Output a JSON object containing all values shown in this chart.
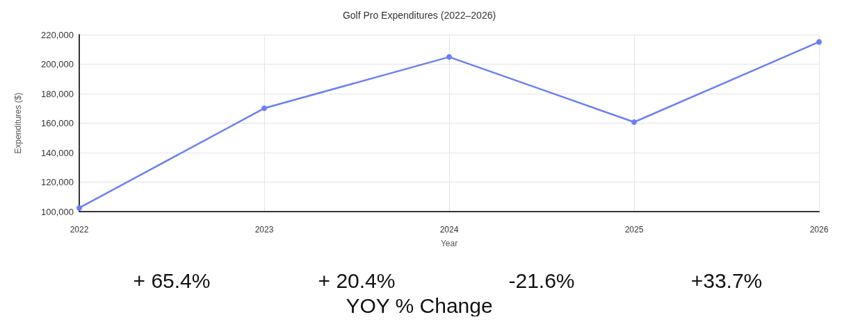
{
  "chart_data": {
    "type": "line",
    "title": "Golf Pro Expenditures (2022–2026)",
    "xlabel": "Year",
    "ylabel": "Expenditures ($)",
    "categories": [
      "2022",
      "2023",
      "2024",
      "2025",
      "2026"
    ],
    "series": [
      {
        "color": "#6b7ff5",
        "values": [
          102500,
          170100,
          204900,
          160700,
          215100
        ]
      }
    ],
    "ylim": [
      100000,
      220000
    ],
    "yticks": [
      {
        "value": 100000,
        "label": "100,000"
      },
      {
        "value": 120000,
        "label": "120,000"
      },
      {
        "value": 140000,
        "label": "140,000"
      },
      {
        "value": 160000,
        "label": "160,000"
      },
      {
        "value": 180000,
        "label": "180,000"
      },
      {
        "value": 200000,
        "label": "200,000"
      },
      {
        "value": 220000,
        "label": "220,000"
      }
    ],
    "grid": true,
    "marker": "circle",
    "line_style": "solid",
    "annotations": [
      "+ 65.4%",
      "+ 20.4%",
      "-21.6%",
      "+33.7%",
      "YOY % Change"
    ]
  }
}
